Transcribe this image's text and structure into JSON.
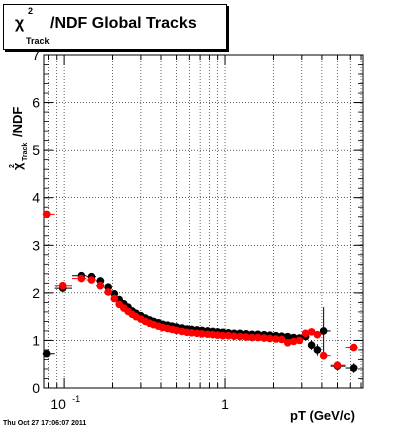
{
  "title": {
    "symbol": "χ",
    "superscript": "2",
    "subscript": "Track",
    "text": "/NDF  Global Tracks"
  },
  "footer": {
    "timestamp": "Thu Oct 27 17:06:07 2011"
  },
  "chart_data": {
    "type": "scatter",
    "title": "χ²_Track/NDF  Global Tracks",
    "xlabel": "pT (GeV/c)",
    "ylabel": "χ²_Track/NDF",
    "xscale": "log",
    "xlim": [
      0.075,
      7.2
    ],
    "ylim": [
      0,
      7
    ],
    "grid": true,
    "x_tick_labels": [
      {
        "value": 0.1,
        "base": "10",
        "exp": "-1"
      },
      {
        "value": 1,
        "base": "1",
        "exp": ""
      }
    ],
    "y_ticks": [
      0,
      1,
      2,
      3,
      4,
      5,
      6,
      7
    ],
    "series": [
      {
        "color": "#000000",
        "x": [
          0.078,
          0.098,
          0.128,
          0.148,
          0.168,
          0.188,
          0.205,
          0.22,
          0.235,
          0.25,
          0.265,
          0.28,
          0.3,
          0.32,
          0.34,
          0.36,
          0.385,
          0.41,
          0.44,
          0.47,
          0.5,
          0.54,
          0.58,
          0.62,
          0.67,
          0.72,
          0.78,
          0.84,
          0.9,
          0.97,
          1.05,
          1.14,
          1.24,
          1.35,
          1.47,
          1.6,
          1.75,
          1.9,
          2.07,
          2.25,
          2.45,
          2.67,
          2.9,
          3.17,
          3.45,
          3.75,
          4.1,
          5.0,
          6.3
        ],
        "y": [
          0.72,
          2.1,
          2.36,
          2.34,
          2.25,
          2.12,
          1.98,
          1.86,
          1.77,
          1.7,
          1.62,
          1.57,
          1.52,
          1.47,
          1.43,
          1.4,
          1.37,
          1.34,
          1.32,
          1.3,
          1.28,
          1.26,
          1.24,
          1.23,
          1.22,
          1.21,
          1.2,
          1.19,
          1.18,
          1.17,
          1.16,
          1.15,
          1.15,
          1.14,
          1.13,
          1.13,
          1.12,
          1.11,
          1.1,
          1.09,
          1.08,
          1.06,
          1.05,
          1.08,
          0.9,
          0.8,
          1.2,
          0.46,
          0.42
        ],
        "yerr": [
          0.05,
          0.04,
          0.03,
          0.03,
          0.02,
          0.02,
          0.02,
          0.02,
          0.02,
          0.02,
          0.02,
          0.02,
          0.02,
          0.02,
          0.02,
          0.02,
          0.02,
          0.02,
          0.02,
          0.02,
          0.02,
          0.02,
          0.02,
          0.02,
          0.02,
          0.02,
          0.02,
          0.02,
          0.02,
          0.02,
          0.02,
          0.02,
          0.02,
          0.02,
          0.02,
          0.02,
          0.02,
          0.02,
          0.03,
          0.03,
          0.03,
          0.05,
          0.06,
          0.07,
          0.1,
          0.12,
          0.5,
          0.08,
          0.1
        ]
      },
      {
        "color": "#ff0000",
        "x": [
          0.078,
          0.098,
          0.128,
          0.148,
          0.168,
          0.188,
          0.205,
          0.22,
          0.235,
          0.25,
          0.265,
          0.28,
          0.3,
          0.32,
          0.34,
          0.36,
          0.385,
          0.41,
          0.44,
          0.47,
          0.5,
          0.54,
          0.58,
          0.62,
          0.67,
          0.72,
          0.78,
          0.84,
          0.9,
          0.97,
          1.05,
          1.14,
          1.24,
          1.35,
          1.47,
          1.6,
          1.75,
          1.9,
          2.07,
          2.25,
          2.45,
          2.67,
          2.9,
          3.17,
          3.45,
          3.75,
          4.1,
          5.0,
          6.3
        ],
        "y": [
          3.65,
          2.15,
          2.3,
          2.27,
          2.15,
          2.02,
          1.88,
          1.76,
          1.68,
          1.61,
          1.55,
          1.5,
          1.45,
          1.4,
          1.36,
          1.33,
          1.3,
          1.27,
          1.25,
          1.23,
          1.21,
          1.19,
          1.17,
          1.16,
          1.15,
          1.14,
          1.13,
          1.12,
          1.11,
          1.1,
          1.1,
          1.09,
          1.08,
          1.07,
          1.06,
          1.06,
          1.05,
          1.04,
          1.03,
          1.02,
          0.95,
          0.98,
          1.0,
          1.15,
          1.18,
          1.12,
          0.68,
          0.48,
          0.85
        ]
      }
    ]
  }
}
